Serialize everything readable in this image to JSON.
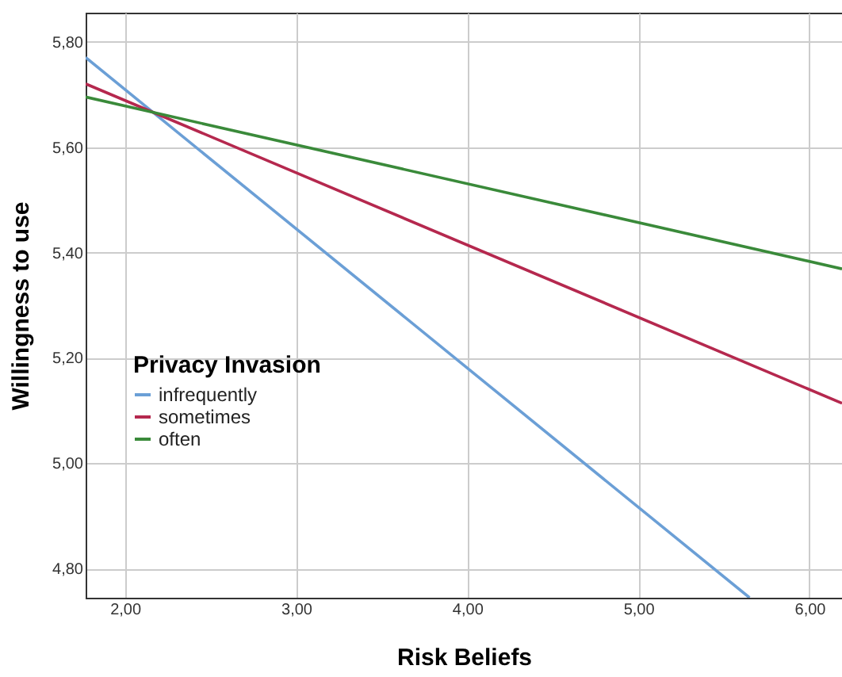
{
  "chart_data": {
    "type": "line",
    "xlabel": "Risk Beliefs",
    "ylabel": "Willingness to use",
    "legend_title": "Privacy Invasion",
    "series": [
      {
        "name": "infrequently",
        "color": "#6b9fd6",
        "x": [
          1.77,
          5.65
        ],
        "values": [
          5.77,
          4.745
        ]
      },
      {
        "name": "sometimes",
        "color": "#b5284e",
        "x": [
          1.77,
          6.19
        ],
        "values": [
          5.72,
          5.114
        ]
      },
      {
        "name": "often",
        "color": "#3a8a3a",
        "x": [
          1.77,
          6.19
        ],
        "values": [
          5.695,
          5.369
        ]
      }
    ],
    "xlim": [
      1.77,
      6.19
    ],
    "ylim": [
      4.745,
      5.855
    ],
    "xticks": [
      {
        "value": 2,
        "label": "2,00"
      },
      {
        "value": 3,
        "label": "3,00"
      },
      {
        "value": 4,
        "label": "4,00"
      },
      {
        "value": 5,
        "label": "5,00"
      },
      {
        "value": 6,
        "label": "6,00"
      }
    ],
    "yticks": [
      {
        "value": 4.8,
        "label": "4,80"
      },
      {
        "value": 5.0,
        "label": "5,00"
      },
      {
        "value": 5.2,
        "label": "5,20"
      },
      {
        "value": 5.4,
        "label": "5,40"
      },
      {
        "value": 5.6,
        "label": "5,60"
      },
      {
        "value": 5.8,
        "label": "5,80"
      }
    ],
    "grid": true,
    "legend": "bottom left",
    "marker": "none",
    "line_style": "solid"
  }
}
